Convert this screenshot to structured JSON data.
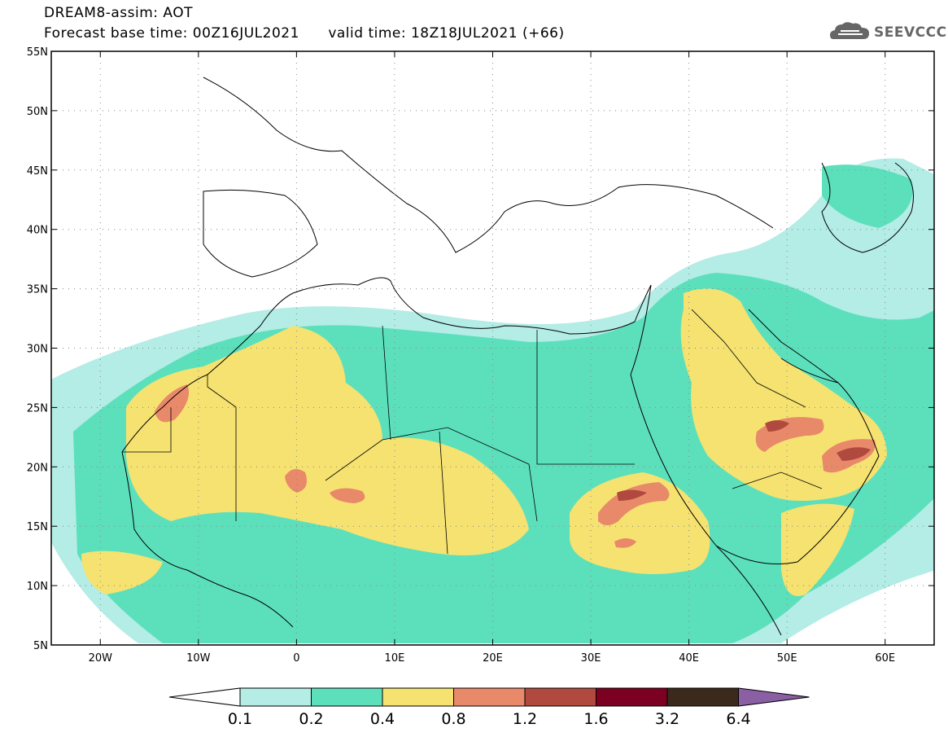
{
  "title": {
    "line1": "DREAM8-assim: AOT",
    "line2": "Forecast base time: 00Z16JUL2021      valid time: 18Z18JUL2021 (+66)"
  },
  "logo": {
    "text": "SEEVCCC",
    "icon": "cloud-icon"
  },
  "map": {
    "projection": "lat-lon",
    "lon_range": [
      -25,
      65
    ],
    "lat_range": [
      5,
      55
    ],
    "lat_labels": [
      "55N",
      "50N",
      "45N",
      "40N",
      "35N",
      "30N",
      "25N",
      "20N",
      "15N",
      "10N",
      "5N"
    ],
    "lat_values": [
      55,
      50,
      45,
      40,
      35,
      30,
      25,
      20,
      15,
      10,
      5
    ],
    "lon_labels": [
      "20W",
      "10W",
      "0",
      "10E",
      "20E",
      "30E",
      "40E",
      "50E",
      "60E"
    ],
    "lon_values": [
      -20,
      -10,
      0,
      10,
      20,
      30,
      40,
      50,
      60
    ],
    "gridlines": "dotted"
  },
  "colorbar": {
    "labels": [
      "0.1",
      "0.2",
      "0.4",
      "0.8",
      "1.2",
      "1.6",
      "3.2",
      "6.4"
    ],
    "colors": [
      "#ffffff",
      "#b4ece6",
      "#5ce0bc",
      "#f5e270",
      "#e8896a",
      "#b04a3e",
      "#7b0022",
      "#3b2a1c",
      "#8a5fa4"
    ]
  }
}
